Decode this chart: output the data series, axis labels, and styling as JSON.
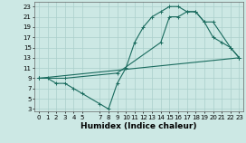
{
  "xlabel": "Humidex (Indice chaleur)",
  "xlim": [
    -0.5,
    23.5
  ],
  "ylim": [
    2.5,
    24
  ],
  "yticks": [
    3,
    5,
    7,
    9,
    11,
    13,
    15,
    17,
    19,
    21,
    23
  ],
  "xticks": [
    0,
    1,
    2,
    3,
    4,
    5,
    7,
    8,
    9,
    10,
    11,
    12,
    13,
    14,
    15,
    16,
    17,
    18,
    19,
    20,
    21,
    22,
    23
  ],
  "bg_color": "#cce8e4",
  "grid_color": "#aacfcb",
  "line_color": "#1a6b5e",
  "line1_x": [
    0,
    1,
    2,
    3,
    4,
    5,
    7,
    8,
    9,
    10,
    11,
    12,
    13,
    14,
    15,
    16,
    17,
    18,
    19,
    20,
    21,
    22,
    23
  ],
  "line1_y": [
    9,
    9,
    8,
    8,
    7,
    6,
    4,
    3,
    8,
    11,
    16,
    19,
    21,
    22,
    23,
    23,
    22,
    22,
    20,
    17,
    16,
    15,
    13
  ],
  "line2_x": [
    0,
    3,
    9,
    14,
    15,
    16,
    17,
    18,
    19,
    20,
    22,
    23
  ],
  "line2_y": [
    9,
    9,
    10,
    16,
    21,
    21,
    22,
    22,
    20,
    20,
    15,
    13
  ],
  "line3_x": [
    0,
    23
  ],
  "line3_y": [
    9,
    13
  ]
}
